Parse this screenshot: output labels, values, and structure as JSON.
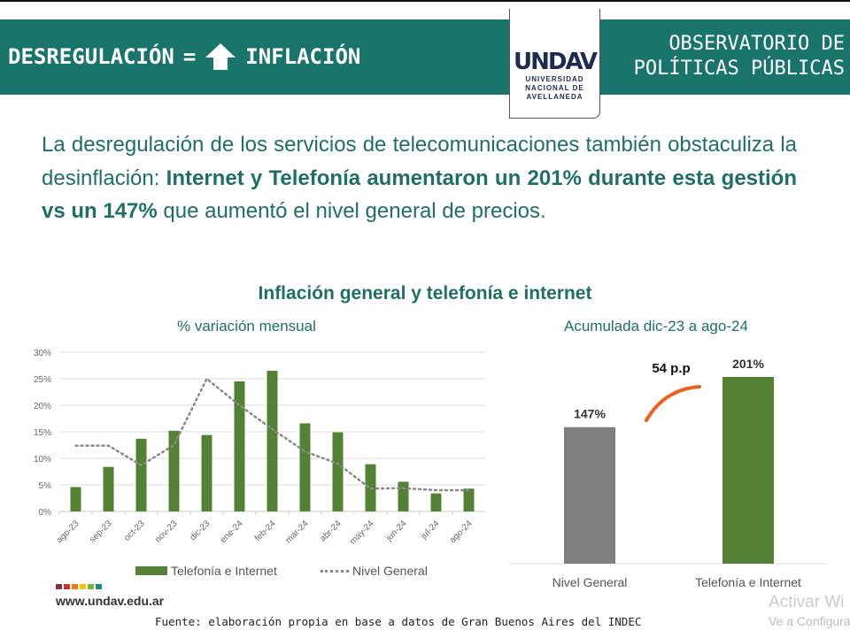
{
  "header": {
    "left_word1": "DESREGULACIÓN",
    "equals": "=",
    "left_word2": "INFLACIÓN",
    "right_line1": "OBSERVATORIO DE",
    "right_line2": "POLÍTICAS PÚBLICAS",
    "logo": {
      "mark": "UNDAV",
      "line1": "UNIVERSIDAD",
      "line2": "NACIONAL DE",
      "line3": "AVELLANEDA"
    }
  },
  "lead": {
    "t1": "La desregulación de los servicios de telecomunicaciones también obstaculiza la desinflación: ",
    "b1": "Internet y Telefonía aumentaron un 201% durante esta gestión vs un 147%",
    "t2": " que aumentó el nivel general de precios."
  },
  "chart_title": "Inflación general y telefonía e internet",
  "chart_data": [
    {
      "type": "bar",
      "subtitle": "% variación mensual",
      "categories": [
        "ago-23",
        "sep-23",
        "oct-23",
        "nov-23",
        "dic-23",
        "ene-24",
        "feb-24",
        "mar-24",
        "abr-24",
        "may-24",
        "jun-24",
        "jul-24",
        "ago-24"
      ],
      "ylim": [
        0,
        30
      ],
      "yticks": [
        "0%",
        "5%",
        "10%",
        "15%",
        "20%",
        "25%",
        "30%"
      ],
      "grid": true,
      "legend": "bottom",
      "series": [
        {
          "name": "Telefonía e Internet",
          "type": "bar",
          "color": "#548235",
          "values": [
            4.6,
            8.4,
            13.7,
            15.2,
            14.4,
            24.5,
            26.5,
            16.6,
            14.9,
            8.9,
            5.6,
            3.4,
            4.3
          ]
        },
        {
          "name": "Nivel General",
          "type": "line",
          "style": "dotted",
          "color": "#888888",
          "values": [
            12.4,
            12.4,
            8.7,
            12.5,
            25.0,
            20.0,
            15.5,
            11.3,
            9.0,
            4.3,
            4.4,
            4.0,
            4.0
          ]
        }
      ]
    },
    {
      "type": "bar",
      "subtitle": "Acumulada dic-23 a ago-24",
      "categories": [
        "Nivel General",
        "Telefonía e Internet"
      ],
      "values": [
        147,
        201
      ],
      "labels": [
        "147%",
        "201%"
      ],
      "colors": [
        "#7f7f7f",
        "#548235"
      ],
      "annotation": "54 p.p"
    }
  ],
  "footer": {
    "site": "www.undav.edu.ar",
    "source": "Fuente: elaboración propia en base a datos de Gran Buenos Aires del INDEC",
    "wm1": "Activar Wi",
    "wm2": "Ve a Configura",
    "palette": [
      "#8b2a4a",
      "#c0392b",
      "#e67e22",
      "#f1c40f",
      "#7fb03b",
      "#1f8a7a"
    ]
  }
}
